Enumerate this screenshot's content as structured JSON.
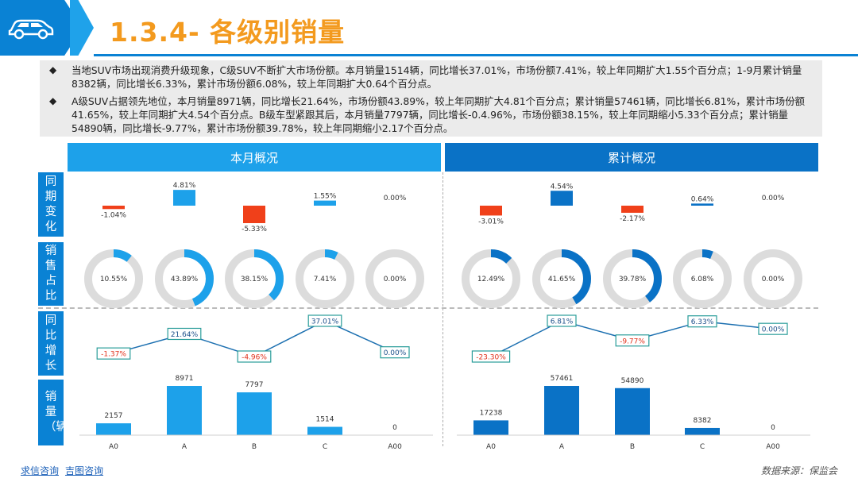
{
  "header": {
    "title": "1.3.4- 各级别销量"
  },
  "bullets": [
    "当地SUV市场出现消费升级现象，C级SUV不断扩大市场份额。本月销量1514辆，同比增长37.01%，市场份额7.41%，较上年同期扩大1.55个百分点；1-9月累计销量8382辆，同比增长6.33%，累计市场份额6.08%，较上年同期扩大0.64个百分点。",
    "A级SUV占据领先地位，本月销量8971辆，同比增长21.64%，市场份额43.89%，较上年同期扩大4.81个百分点；累计销量57461辆，同比增长6.81%，累计市场份额41.65%，较上年同期扩大4.54个百分点。B级车型紧跟其后，本月销量7797辆，同比增长-0.4.96%，市场份额38.15%，较上年同期缩小5.33个百分点；累计销量54890辆，同比增长-9.77%，累计市场份额39.78%，较上年同期缩小2.17个百分点。"
  ],
  "panels": {
    "monthly": "本月概况",
    "cumulative": "累计概况"
  },
  "row_labels": {
    "share_change": "同期变化",
    "share": "销售占比",
    "yoy": "同比增长",
    "volume": "销量（辆）"
  },
  "colors": {
    "primary": "#0a82d4",
    "light_bar": "#1da1ea",
    "dark_bar": "#0a72c6",
    "negative": "#f0401a",
    "title": "#f39a1e",
    "ring_bg": "#dcdcdc"
  },
  "chart_data": [
    {
      "type": "bar",
      "name_ref": "monthly-share-change",
      "categories": [
        "A0",
        "A",
        "B",
        "C",
        "A00"
      ],
      "values": [
        -1.04,
        4.81,
        -5.33,
        1.55,
        0.0
      ],
      "labels": [
        "-1.04%",
        "4.81%",
        "-5.33%",
        "1.55%",
        "0.00%"
      ]
    },
    {
      "type": "pie",
      "name_ref": "monthly-share",
      "categories": [
        "A0",
        "A",
        "B",
        "C",
        "A00"
      ],
      "values": [
        10.55,
        43.89,
        38.15,
        7.41,
        0.0
      ],
      "labels": [
        "10.55%",
        "43.89%",
        "38.15%",
        "7.41%",
        "0.00%"
      ]
    },
    {
      "type": "line",
      "name_ref": "monthly-yoy",
      "categories": [
        "A0",
        "A",
        "B",
        "C",
        "A00"
      ],
      "values": [
        -1.37,
        21.64,
        -4.96,
        37.01,
        0.0
      ],
      "labels": [
        "-1.37%",
        "21.64%",
        "-4.96%",
        "37.01%",
        "0.00%"
      ]
    },
    {
      "type": "bar",
      "name_ref": "monthly-volume",
      "categories": [
        "A0",
        "A",
        "B",
        "C",
        "A00"
      ],
      "values": [
        2157,
        8971,
        7797,
        1514,
        0
      ],
      "labels": [
        "2157",
        "8971",
        "7797",
        "1514",
        "0"
      ]
    },
    {
      "type": "bar",
      "name_ref": "cumulative-share-change",
      "categories": [
        "A0",
        "A",
        "B",
        "C",
        "A00"
      ],
      "values": [
        -3.01,
        4.54,
        -2.17,
        0.64,
        0.0
      ],
      "labels": [
        "-3.01%",
        "4.54%",
        "-2.17%",
        "0.64%",
        "0.00%"
      ]
    },
    {
      "type": "pie",
      "name_ref": "cumulative-share",
      "categories": [
        "A0",
        "A",
        "B",
        "C",
        "A00"
      ],
      "values": [
        12.49,
        41.65,
        39.78,
        6.08,
        0.0
      ],
      "labels": [
        "12.49%",
        "41.65%",
        "39.78%",
        "6.08%",
        "0.00%"
      ]
    },
    {
      "type": "line",
      "name_ref": "cumulative-yoy",
      "categories": [
        "A0",
        "A",
        "B",
        "C",
        "A00"
      ],
      "values": [
        -23.3,
        6.81,
        -9.77,
        6.33,
        0.0
      ],
      "labels": [
        "-23.30%",
        "6.81%",
        "-9.77%",
        "6.33%",
        "0.00%"
      ]
    },
    {
      "type": "bar",
      "name_ref": "cumulative-volume",
      "categories": [
        "A0",
        "A",
        "B",
        "C",
        "A00"
      ],
      "values": [
        17238,
        57461,
        54890,
        8382,
        0
      ],
      "labels": [
        "17238",
        "57461",
        "54890",
        "8382",
        "0"
      ]
    }
  ],
  "footer": {
    "links": [
      "求信咨询",
      "吉图咨询"
    ],
    "source": "数据来源：保监会"
  }
}
